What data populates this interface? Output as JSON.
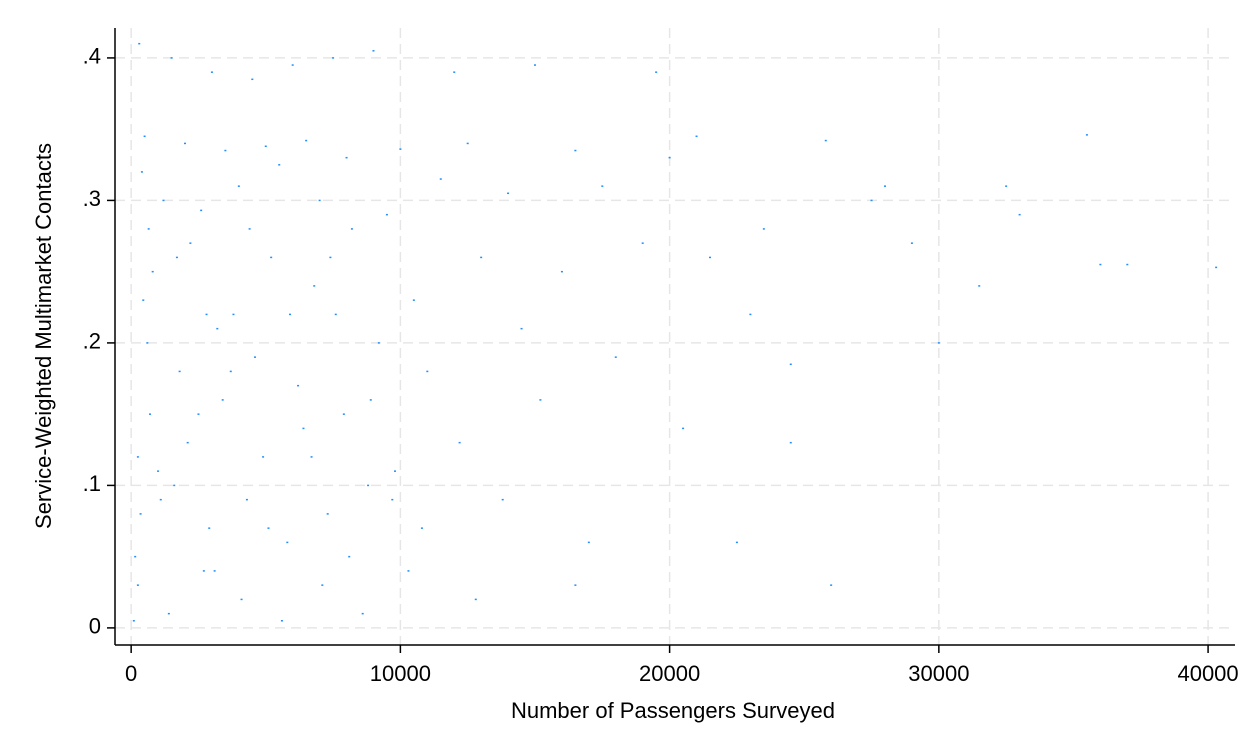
{
  "chart_data": {
    "type": "scatter",
    "x_label": "Number of Passengers Surveyed",
    "y_label": "Service-Weighted Multimarket Contacts",
    "color": "#1e90ff",
    "grid": true,
    "xlim": [
      -600,
      41000
    ],
    "ylim": [
      -0.012,
      0.421
    ],
    "xticks": [
      0,
      10000,
      20000,
      30000,
      40000
    ],
    "yticks": [
      0,
      {
        "value": 0.1,
        "label": ".1"
      },
      {
        "value": 0.2,
        "label": ".2"
      },
      {
        "value": 0.3,
        "label": ".3"
      },
      {
        "value": 0.4,
        "label": ".4"
      }
    ],
    "x": [
      300,
      1500,
      3000,
      4500,
      6000,
      7500,
      9000,
      12000,
      15000,
      19500,
      500,
      2000,
      3500,
      5000,
      6500,
      8000,
      10000,
      12500,
      16500,
      21000,
      400,
      1200,
      2600,
      4000,
      5500,
      7000,
      9500,
      11500,
      14000,
      17500,
      800,
      2200,
      3800,
      5200,
      6800,
      8200,
      10500,
      13000,
      16000,
      19000,
      600,
      1800,
      3200,
      4600,
      6200,
      7600,
      9200,
      11000,
      14500,
      18000,
      700,
      2100,
      3400,
      4900,
      6400,
      7900,
      9800,
      12200,
      15200,
      20500,
      350,
      1600,
      2900,
      4300,
      5800,
      7300,
      8800,
      10800,
      13800,
      17000,
      250,
      1400,
      2700,
      4100,
      5600,
      7100,
      8600,
      10300,
      12800,
      16500,
      21500,
      23000,
      24500,
      26000,
      27500,
      29000,
      30000,
      31500,
      33000,
      35500,
      36000,
      37000,
      40300,
      25800,
      22500,
      23500,
      28000,
      32500,
      20000,
      24500,
      100,
      150,
      250,
      450,
      650,
      1000,
      1100,
      1700,
      2500,
      2800,
      3100,
      3700,
      4400,
      5100,
      5900,
      6700,
      7400,
      8100,
      8900,
      9700
    ],
    "values": [
      0.41,
      0.4,
      0.39,
      0.385,
      0.395,
      0.4,
      0.405,
      0.39,
      0.395,
      0.39,
      0.345,
      0.34,
      0.335,
      0.338,
      0.342,
      0.33,
      0.336,
      0.34,
      0.335,
      0.345,
      0.32,
      0.3,
      0.293,
      0.31,
      0.325,
      0.3,
      0.29,
      0.315,
      0.305,
      0.31,
      0.25,
      0.27,
      0.22,
      0.26,
      0.24,
      0.28,
      0.23,
      0.26,
      0.25,
      0.27,
      0.2,
      0.18,
      0.21,
      0.19,
      0.17,
      0.22,
      0.2,
      0.18,
      0.21,
      0.19,
      0.15,
      0.13,
      0.16,
      0.12,
      0.14,
      0.15,
      0.11,
      0.13,
      0.16,
      0.14,
      0.08,
      0.1,
      0.07,
      0.09,
      0.06,
      0.08,
      0.1,
      0.07,
      0.09,
      0.06,
      0.03,
      0.01,
      0.04,
      0.02,
      0.005,
      0.03,
      0.01,
      0.04,
      0.02,
      0.03,
      0.26,
      0.22,
      0.13,
      0.03,
      0.3,
      0.27,
      0.2,
      0.24,
      0.29,
      0.346,
      0.255,
      0.255,
      0.253,
      0.342,
      0.06,
      0.28,
      0.31,
      0.31,
      0.33,
      0.185,
      0.005,
      0.05,
      0.12,
      0.23,
      0.28,
      0.11,
      0.09,
      0.26,
      0.15,
      0.22,
      0.04,
      0.18,
      0.28,
      0.07,
      0.22,
      0.12,
      0.26,
      0.05,
      0.16,
      0.09
    ]
  }
}
